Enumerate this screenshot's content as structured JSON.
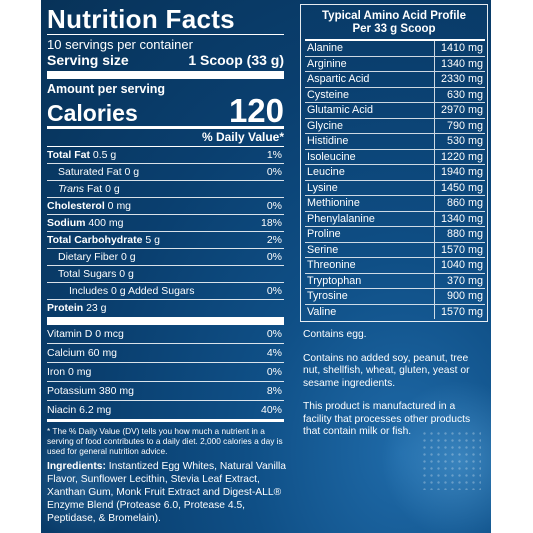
{
  "nutrition": {
    "title": "Nutrition Facts",
    "servings": "10 servings per container",
    "serving_size_label": "Serving size",
    "serving_size_value": "1 Scoop (33 g)",
    "amount_per_serving": "Amount per serving",
    "calories_label": "Calories",
    "calories_value": "120",
    "dv_header": "% Daily Value*",
    "rows": [
      {
        "label_bold": "Total Fat",
        "label": " 0.5 g",
        "value": "1%"
      },
      {
        "label_bold": "",
        "label": "Saturated Fat 0 g",
        "value": "0%"
      },
      {
        "label_bold": "",
        "label_italic": "Trans",
        "label": " Fat 0 g",
        "value": ""
      },
      {
        "label_bold": "Cholesterol",
        "label": " 0 mg",
        "value": "0%"
      },
      {
        "label_bold": "Sodium",
        "label": " 400 mg",
        "value": "18%"
      },
      {
        "label_bold": "Total Carbohydrate",
        "label": " 5 g",
        "value": "2%"
      },
      {
        "label_bold": "",
        "label": "Dietary Fiber 0 g",
        "value": "0%"
      },
      {
        "label_bold": "",
        "label": "Total Sugars 0 g",
        "value": ""
      },
      {
        "label_bold": "",
        "label": "Includes 0 g Added Sugars",
        "value": "0%"
      },
      {
        "label_bold": "Protein",
        "label": " 23 g",
        "value": ""
      }
    ],
    "vitamins": [
      {
        "label": "Vitamin D 0 mcg",
        "value": "0%"
      },
      {
        "label": "Calcium 60 mg",
        "value": "4%"
      },
      {
        "label": "Iron 0 mg",
        "value": "0%"
      },
      {
        "label": "Potassium 380 mg",
        "value": "8%"
      },
      {
        "label": "Niacin 6.2 mg",
        "value": "40%"
      }
    ],
    "footnote": "* The % Daily Value (DV) tells you how much a nutrient in a serving of food contributes to a daily diet. 2,000 calories a day is used for general nutrition advice."
  },
  "ingredients": {
    "label": "Ingredients:",
    "text": " Instantized Egg Whites, Natural Vanilla Flavor, Sunflower Lecithin, Stevia Leaf Extract, Xanthan Gum, Monk Fruit Extract and Digest-ALL® Enzyme Blend (Protease 6.0, Protease 4.5, Peptidase, & Bromelain)."
  },
  "amino": {
    "title_line1": "Typical Amino Acid Profile",
    "title_line2": "Per 33 g Scoop",
    "rows": [
      {
        "name": "Alanine",
        "value": "1410 mg"
      },
      {
        "name": "Arginine",
        "value": "1340 mg"
      },
      {
        "name": "Aspartic Acid",
        "value": "2330 mg"
      },
      {
        "name": "Cysteine",
        "value": "630 mg"
      },
      {
        "name": "Glutamic Acid",
        "value": "2970 mg"
      },
      {
        "name": "Glycine",
        "value": "790 mg"
      },
      {
        "name": "Histidine",
        "value": "530 mg"
      },
      {
        "name": "Isoleucine",
        "value": "1220 mg"
      },
      {
        "name": "Leucine",
        "value": "1940 mg"
      },
      {
        "name": "Lysine",
        "value": "1450 mg"
      },
      {
        "name": "Methionine",
        "value": "860 mg"
      },
      {
        "name": "Phenylalanine",
        "value": "1340 mg"
      },
      {
        "name": "Proline",
        "value": "880 mg"
      },
      {
        "name": "Serine",
        "value": "1570 mg"
      },
      {
        "name": "Threonine",
        "value": "1040 mg"
      },
      {
        "name": "Tryptophan",
        "value": "370 mg"
      },
      {
        "name": "Tyrosine",
        "value": "900 mg"
      },
      {
        "name": "Valine",
        "value": "1570 mg"
      }
    ]
  },
  "notes": [
    "Contains egg.",
    "Contains no added soy, peanut, tree nut, shellfish, wheat, gluten, yeast or sesame ingredients.",
    "This product is manufactured in a facility that processes other products that contain milk or fish."
  ],
  "colors": {
    "panel": "#0a3f6f",
    "text": "#ffffff"
  }
}
